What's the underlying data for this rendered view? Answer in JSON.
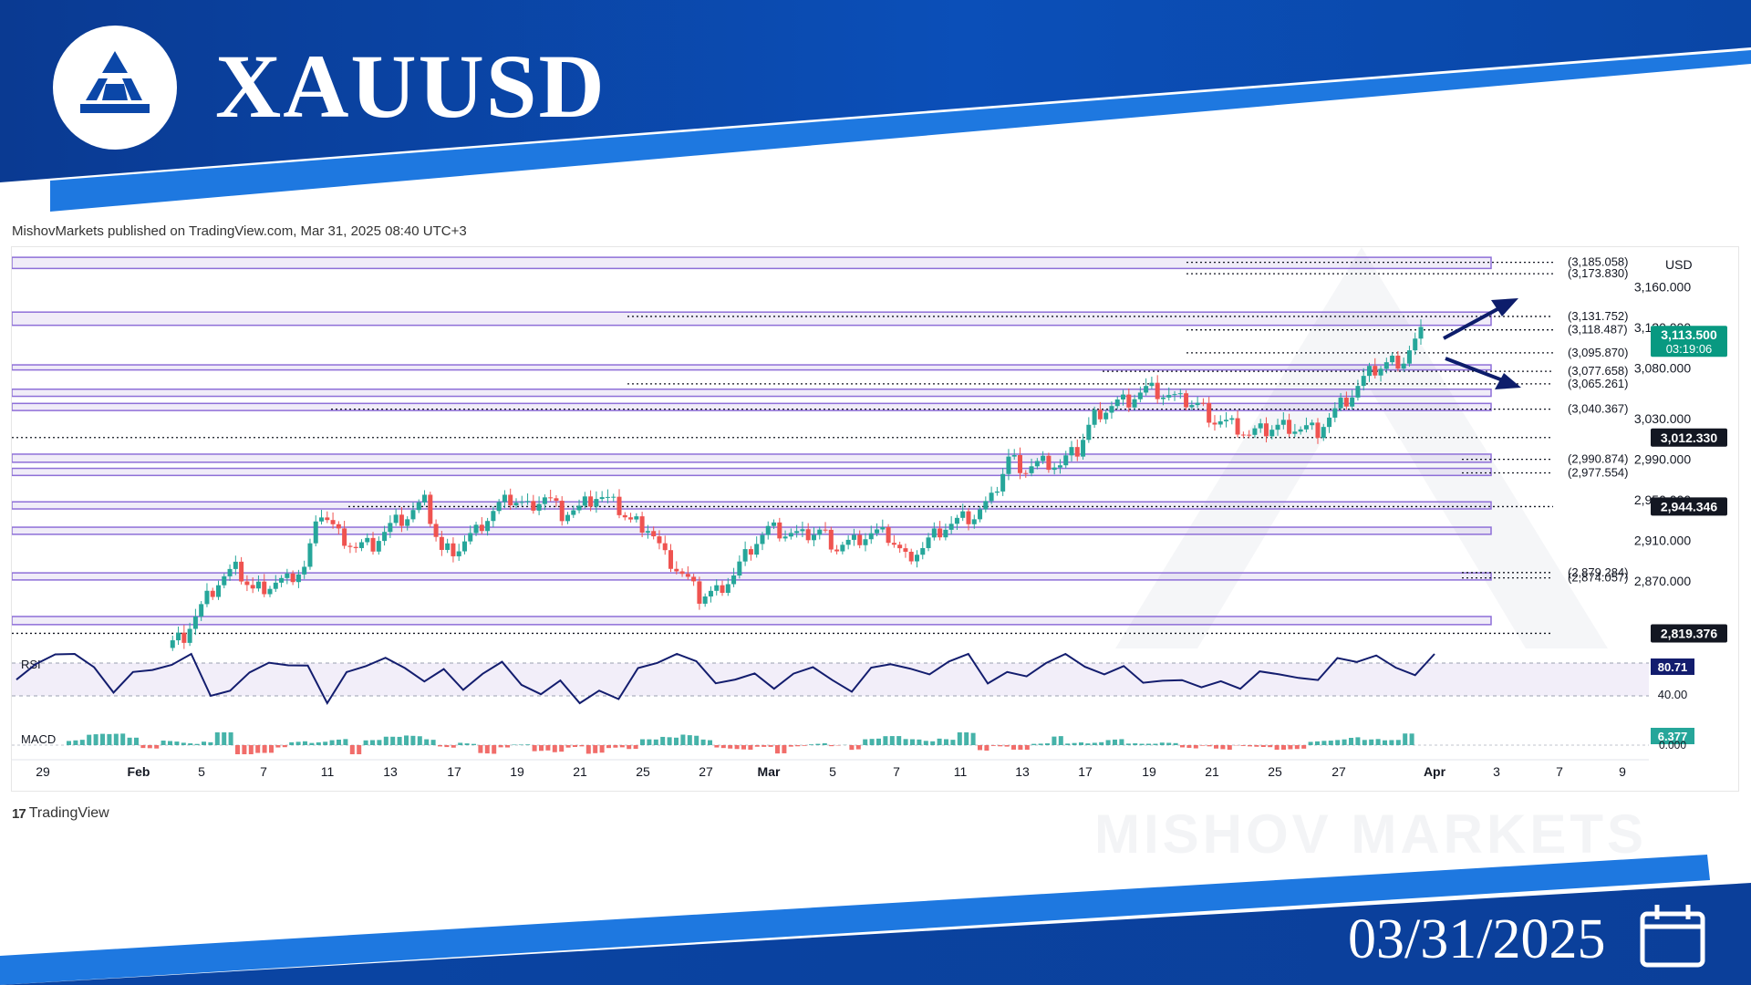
{
  "header": {
    "symbol": "XAUUSD",
    "date": "03/31/2025",
    "logo_icon": "triangle-bars-logo-icon",
    "calendar_icon": "calendar-icon",
    "brand_color": "#0b47a8"
  },
  "published_line": "MishovMarkets published on TradingView.com, Mar 31, 2025 08:40 UTC+3",
  "footer_brand": "TradingView",
  "watermark_text": "MISHOV MARKETS",
  "chart_data": {
    "type": "candlestick",
    "currency": "USD",
    "y_range": [
      2800,
      3200
    ],
    "x_ticks": [
      "29",
      "Feb",
      "5",
      "7",
      "11",
      "13",
      "17",
      "19",
      "21",
      "25",
      "27",
      "Mar",
      "5",
      "7",
      "11",
      "13",
      "17",
      "19",
      "21",
      "25",
      "27",
      "Apr",
      "3",
      "7",
      "9"
    ],
    "y_ticks": [
      "3,160.000",
      "3,120.000",
      "3,080.000",
      "3,030.000",
      "2,990.000",
      "2,950.000",
      "2,910.000",
      "2,870.000"
    ],
    "price_levels": [
      {
        "label": "(3,185.058)",
        "value": 3185.058
      },
      {
        "label": "(3,173.830)",
        "value": 3173.83
      },
      {
        "label": "(3,131.752)",
        "value": 3131.752
      },
      {
        "label": "(3,118.487)",
        "value": 3118.487
      },
      {
        "label": "(3,095.870)",
        "value": 3095.87
      },
      {
        "label": "(3,077.658)",
        "value": 3077.658
      },
      {
        "label": "(3,065.261)",
        "value": 3065.261
      },
      {
        "label": "(3,040.367)",
        "value": 3040.367
      },
      {
        "label": "(2,990.874)",
        "value": 2990.874
      },
      {
        "label": "(2,977.554)",
        "value": 2977.554
      },
      {
        "label": "(2,879.284)",
        "value": 2879.284
      },
      {
        "label": "(2,874.057)",
        "value": 2874.057
      }
    ],
    "axis_badges": [
      {
        "value": 3113.5,
        "text": "3,113.500",
        "sub": "03:19:06",
        "color": "#089981"
      },
      {
        "value": 3012.33,
        "text": "3,012.330",
        "color": "#131722"
      },
      {
        "value": 2944.346,
        "text": "2,944.346",
        "color": "#131722"
      },
      {
        "value": 2819.376,
        "text": "2,819.376",
        "color": "#131722"
      }
    ],
    "zones": [
      {
        "top": 3190,
        "bottom": 3179
      },
      {
        "top": 3136,
        "bottom": 3123
      },
      {
        "top": 3084,
        "bottom": 3079
      },
      {
        "top": 3060,
        "bottom": 3053
      },
      {
        "top": 3046,
        "bottom": 3039
      },
      {
        "top": 2996,
        "bottom": 2988
      },
      {
        "top": 2982,
        "bottom": 2975
      },
      {
        "top": 2949,
        "bottom": 2942
      },
      {
        "top": 2924,
        "bottom": 2917
      },
      {
        "top": 2879,
        "bottom": 2872
      },
      {
        "top": 2836,
        "bottom": 2828
      }
    ],
    "price_path": [
      2805,
      2818,
      2845,
      2870,
      2882,
      2862,
      2868,
      2872,
      2885,
      2940,
      2918,
      2905,
      2908,
      2925,
      2935,
      2948,
      2900,
      2905,
      2920,
      2940,
      2952,
      2945,
      2955,
      2938,
      2942,
      2955,
      2946,
      2930,
      2925,
      2895,
      2878,
      2855,
      2862,
      2878,
      2905,
      2922,
      2918,
      2914,
      2920,
      2905,
      2910,
      2918,
      2915,
      2895,
      2905,
      2922,
      2930,
      2935,
      2950,
      2992,
      2982,
      2988,
      2985,
      3000,
      3035,
      3045,
      3050,
      3060,
      3055,
      3048,
      3045,
      3030,
      3025,
      3015,
      3020,
      3025,
      3022,
      3020,
      3038,
      3055,
      3075,
      3085,
      3090,
      3115
    ],
    "rsi": {
      "label": "RSI",
      "value_text": "80.71",
      "level_text": "40.00",
      "color": "#131d6e"
    },
    "macd": {
      "label": "MACD",
      "value_text": "6.377",
      "zero_text": "0.000",
      "color": "#26a69a"
    }
  }
}
